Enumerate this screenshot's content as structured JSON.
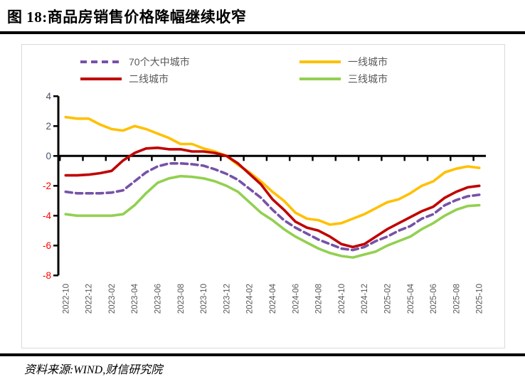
{
  "figure": {
    "title": "图 18:商品房销售价格降幅继续收窄",
    "source": "资料来源:WIND,财信研究院"
  },
  "colors": {
    "seventy_city": "#7652A8",
    "first_tier": "#FFC000",
    "second_tier": "#C00000",
    "third_tier": "#92D050",
    "axis_line": "#000000",
    "axis_positive_label": "#44546A",
    "axis_negative_label": "#FF0000",
    "x_label": "#595959",
    "legend_text": "#595959",
    "chart_border": "#D9D9D9"
  },
  "chart_data": {
    "type": "line",
    "title": "图 18:商品房销售价格降幅继续收窄",
    "xlabel": "",
    "ylabel": "",
    "ylim": [
      -8,
      4
    ],
    "y_ticks": [
      4,
      2,
      0,
      -2,
      -4,
      -6,
      -8
    ],
    "grid": false,
    "legend_position": "top",
    "x": [
      "2022-10",
      "2022-11",
      "2022-12",
      "2023-01",
      "2023-02",
      "2023-03",
      "2023-04",
      "2023-05",
      "2023-06",
      "2023-07",
      "2023-08",
      "2023-09",
      "2023-10",
      "2023-11",
      "2023-12",
      "2024-01",
      "2024-02",
      "2024-03",
      "2024-04",
      "2024-05",
      "2024-06",
      "2024-07",
      "2024-08",
      "2024-09",
      "2024-10",
      "2024-11",
      "2024-12",
      "2025-01",
      "2025-02",
      "2025-03",
      "2025-04",
      "2025-05",
      "2025-06",
      "2025-07",
      "2025-08",
      "2025-09",
      "2025-10"
    ],
    "x_tick_labels": [
      "2022-10",
      "2022-12",
      "2023-02",
      "2023-04",
      "2023-06",
      "2023-08",
      "2023-10",
      "2023-12",
      "2024-02",
      "2024-04",
      "2024-06",
      "2024-08",
      "2024-10",
      "2024-12",
      "2025-02",
      "2025-04",
      "2025-06",
      "2025-08",
      "2025-10"
    ],
    "series": [
      {
        "name": "70个大中城市",
        "color_key": "seventy_city",
        "dash": true,
        "values": [
          -2.4,
          -2.5,
          -2.5,
          -2.5,
          -2.45,
          -2.3,
          -1.7,
          -1.1,
          -0.7,
          -0.5,
          -0.5,
          -0.55,
          -0.65,
          -0.9,
          -1.2,
          -1.6,
          -2.2,
          -2.8,
          -3.6,
          -4.3,
          -4.8,
          -5.2,
          -5.6,
          -5.9,
          -6.2,
          -6.3,
          -6.1,
          -5.7,
          -5.4,
          -5.0,
          -4.7,
          -4.2,
          -3.9,
          -3.3,
          -2.95,
          -2.7,
          -2.6
        ]
      },
      {
        "name": "一线城市",
        "color_key": "first_tier",
        "dash": false,
        "values": [
          2.6,
          2.5,
          2.5,
          2.1,
          1.8,
          1.7,
          2.0,
          1.8,
          1.5,
          1.2,
          0.8,
          0.8,
          0.5,
          0.3,
          0.0,
          -0.6,
          -1.1,
          -1.7,
          -2.4,
          -3.0,
          -3.8,
          -4.2,
          -4.3,
          -4.6,
          -4.5,
          -4.2,
          -3.9,
          -3.5,
          -3.1,
          -2.9,
          -2.5,
          -2.0,
          -1.7,
          -1.1,
          -0.85,
          -0.7,
          -0.8
        ]
      },
      {
        "name": "二线城市",
        "color_key": "second_tier",
        "dash": false,
        "values": [
          -1.3,
          -1.3,
          -1.25,
          -1.15,
          -1.0,
          -0.3,
          0.2,
          0.5,
          0.55,
          0.45,
          0.45,
          0.3,
          0.3,
          0.2,
          0.0,
          -0.5,
          -1.2,
          -1.9,
          -2.9,
          -3.6,
          -4.4,
          -4.8,
          -5.0,
          -5.4,
          -5.9,
          -6.1,
          -5.9,
          -5.4,
          -4.9,
          -4.5,
          -4.1,
          -3.7,
          -3.4,
          -2.8,
          -2.4,
          -2.1,
          -2.0
        ]
      },
      {
        "name": "三线城市",
        "color_key": "third_tier",
        "dash": false,
        "values": [
          -3.9,
          -4.0,
          -4.0,
          -4.0,
          -4.0,
          -3.9,
          -3.3,
          -2.5,
          -1.8,
          -1.5,
          -1.35,
          -1.4,
          -1.5,
          -1.7,
          -2.0,
          -2.4,
          -3.1,
          -3.8,
          -4.3,
          -4.9,
          -5.4,
          -5.8,
          -6.2,
          -6.5,
          -6.7,
          -6.8,
          -6.6,
          -6.4,
          -6.0,
          -5.7,
          -5.4,
          -4.9,
          -4.5,
          -4.0,
          -3.6,
          -3.35,
          -3.3
        ]
      }
    ]
  }
}
